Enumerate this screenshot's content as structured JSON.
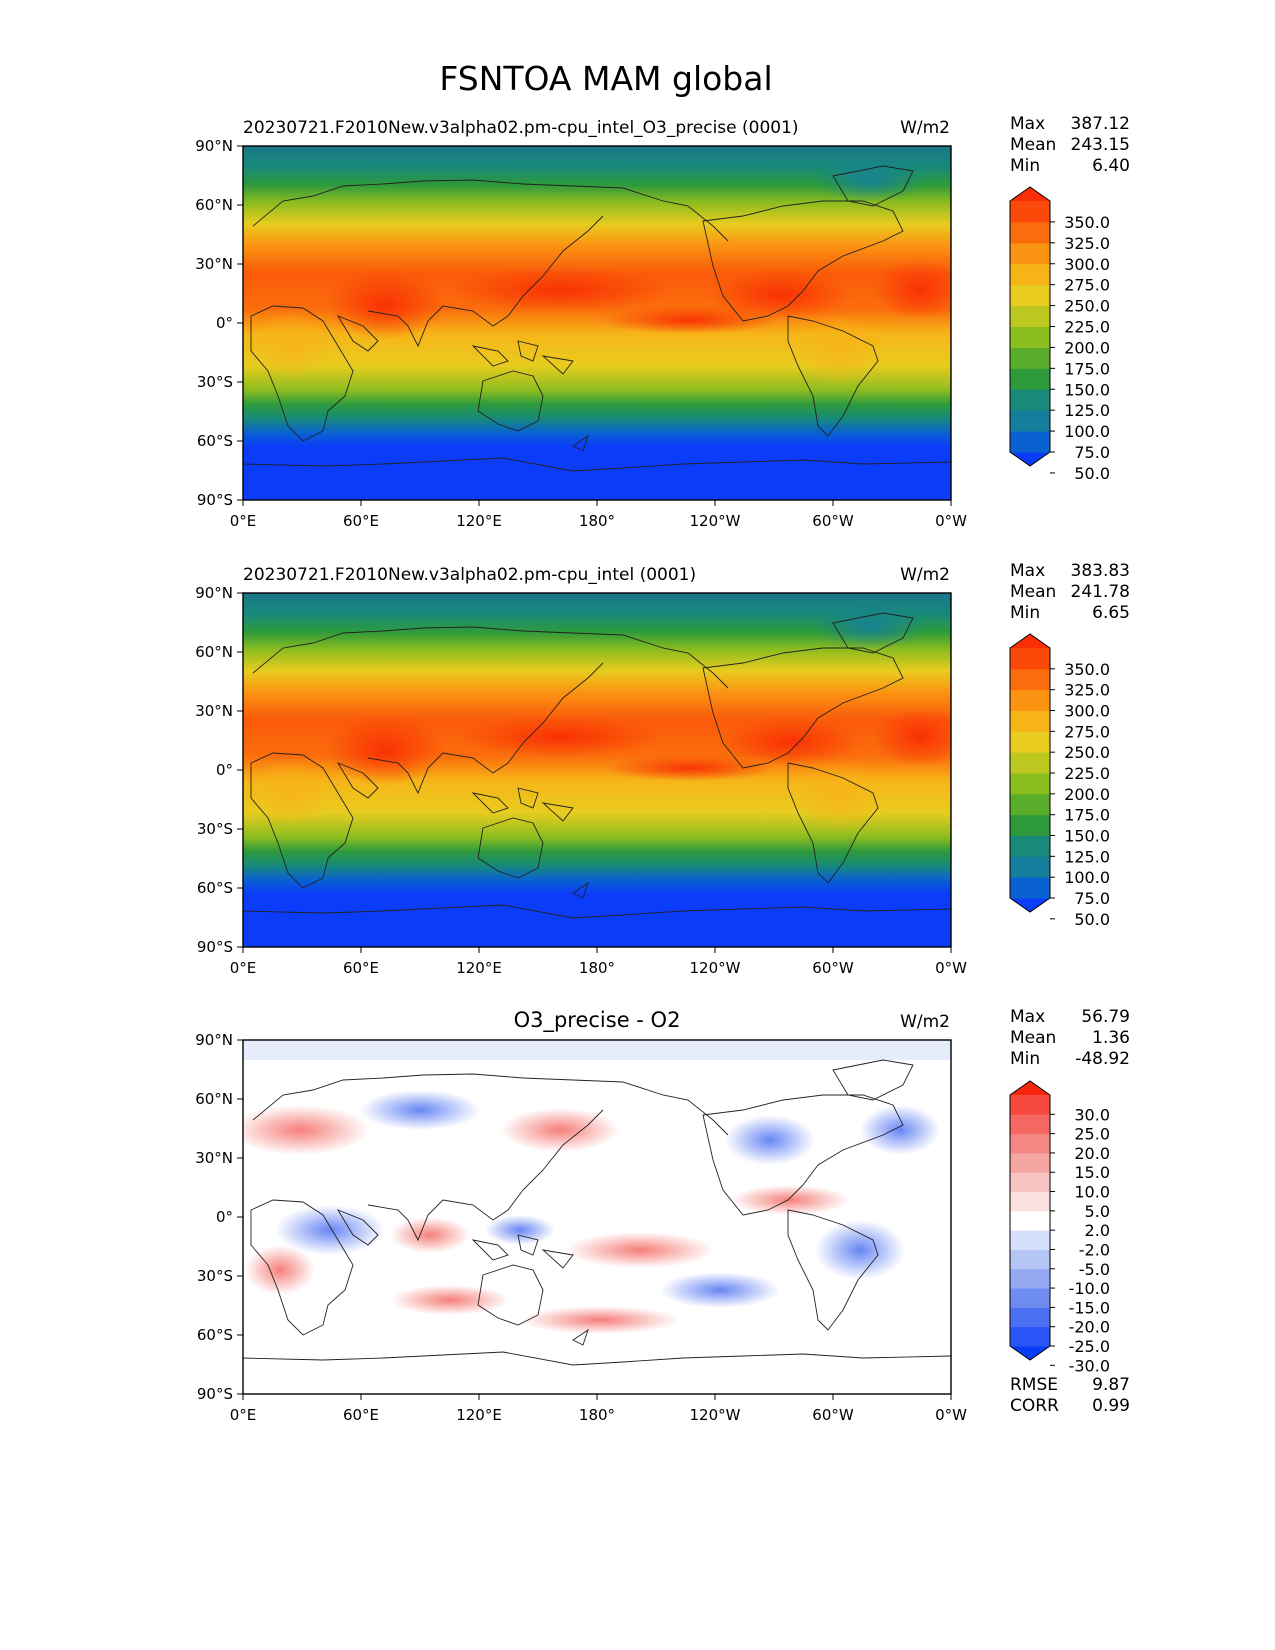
{
  "chart_data": {
    "type": "heatmap",
    "title": "FSNTOA MAM global",
    "x_ticks": [
      "0°E",
      "60°E",
      "120°E",
      "180°",
      "120°W",
      "60°W",
      "0°W"
    ],
    "y_ticks": [
      "90°N",
      "60°N",
      "30°N",
      "0°",
      "30°S",
      "60°S",
      "90°S"
    ],
    "panels": [
      {
        "id": "test",
        "title": "20230721.F2010New.v3alpha02.pm-cpu_intel_O3_precise (0001)",
        "units": "W/m2",
        "stats": [
          {
            "label": "Max",
            "value": "387.12"
          },
          {
            "label": "Mean",
            "value": "243.15"
          },
          {
            "label": "Min",
            "value": "6.40"
          }
        ],
        "colorbar_ticks": [
          "350.0",
          "325.0",
          "300.0",
          "275.0",
          "250.0",
          "225.0",
          "200.0",
          "175.0",
          "150.0",
          "125.0",
          "100.0",
          "75.0",
          "50.0"
        ],
        "colorbar_colors": [
          "#0b3cfa",
          "#0a62d0",
          "#137f9c",
          "#178a7a",
          "#2e9a3c",
          "#5aad2a",
          "#8cbd1f",
          "#bcc820",
          "#e8cc1f",
          "#f7b418",
          "#fb9412",
          "#fb6d0c",
          "#fa4908",
          "#f92e04"
        ]
      },
      {
        "id": "ref",
        "title": "20230721.F2010New.v3alpha02.pm-cpu_intel (0001)",
        "units": "W/m2",
        "stats": [
          {
            "label": "Max",
            "value": "383.83"
          },
          {
            "label": "Mean",
            "value": "241.78"
          },
          {
            "label": "Min",
            "value": "6.65"
          }
        ],
        "colorbar_ticks": [
          "350.0",
          "325.0",
          "300.0",
          "275.0",
          "250.0",
          "225.0",
          "200.0",
          "175.0",
          "150.0",
          "125.0",
          "100.0",
          "75.0",
          "50.0"
        ],
        "colorbar_colors": [
          "#0b3cfa",
          "#0a62d0",
          "#137f9c",
          "#178a7a",
          "#2e9a3c",
          "#5aad2a",
          "#8cbd1f",
          "#bcc820",
          "#e8cc1f",
          "#f7b418",
          "#fb9412",
          "#fb6d0c",
          "#fa4908",
          "#f92e04"
        ]
      },
      {
        "id": "diff",
        "title": "O3_precise - O2",
        "units": "W/m2",
        "stats": [
          {
            "label": "Max",
            "value": "56.79"
          },
          {
            "label": "Mean",
            "value": "1.36"
          },
          {
            "label": "Min",
            "value": "-48.92"
          }
        ],
        "extra_stats": [
          {
            "label": "RMSE",
            "value": "9.87"
          },
          {
            "label": "CORR",
            "value": "0.99"
          }
        ],
        "colorbar_ticks": [
          "30.0",
          "25.0",
          "20.0",
          "15.0",
          "10.0",
          "5.0",
          "2.0",
          "-2.0",
          "-5.0",
          "-10.0",
          "-15.0",
          "-20.0",
          "-25.0",
          "-30.0"
        ],
        "colorbar_colors": [
          "#0b3cfa",
          "#2a55f6",
          "#4c70f2",
          "#6f8cf0",
          "#93a9f2",
          "#b5c5f6",
          "#d7e0fa",
          "#ffffff",
          "#fbe1e0",
          "#f8c3c1",
          "#f5a5a2",
          "#f48783",
          "#f46862",
          "#f64a3f",
          "#f8250e"
        ]
      }
    ]
  }
}
